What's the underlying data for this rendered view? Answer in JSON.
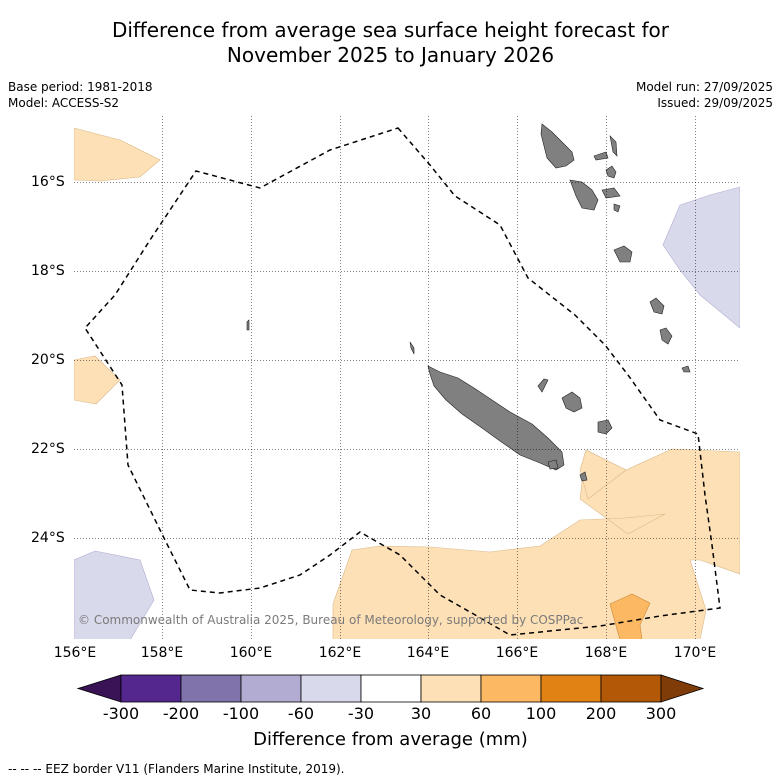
{
  "title": {
    "line1": "Difference from average sea surface height forecast for",
    "line2": "November 2025 to January 2026"
  },
  "meta": {
    "base_period": "Base period: 1981-2018",
    "model": "Model: ACCESS-S2",
    "model_run": "Model run: 27/09/2025",
    "issued": "Issued: 29/09/2025"
  },
  "axes": {
    "lon_labels": [
      "156°E",
      "158°E",
      "160°E",
      "162°E",
      "164°E",
      "166°E",
      "168°E",
      "170°E"
    ],
    "lat_labels": [
      "16°S",
      "18°S",
      "20°S",
      "22°S",
      "24°S"
    ]
  },
  "copyright": "© Commonwealth of Australia 2025, Bureau of Meteorology, supported by COSPPac",
  "colorbar": {
    "labels": [
      "-300",
      "-200",
      "-100",
      "-60",
      "-30",
      "30",
      "60",
      "100",
      "200",
      "300"
    ],
    "colors": [
      "#3a1256",
      "#54278f",
      "#8073ac",
      "#b2abd2",
      "#d8daeb",
      "#ffffff",
      "#fee0b6",
      "#fdb863",
      "#e08214",
      "#b35806",
      "#7f3b08"
    ],
    "title": "Difference from average (mm)"
  },
  "footnote": "--  --  -- EEZ border V11 (Flanders Marine Institute, 2019).",
  "map_colors": {
    "positive_light": "#fee0b6",
    "positive_mid": "#fdb863",
    "negative_light": "#d8daeb",
    "land": "#808080"
  }
}
